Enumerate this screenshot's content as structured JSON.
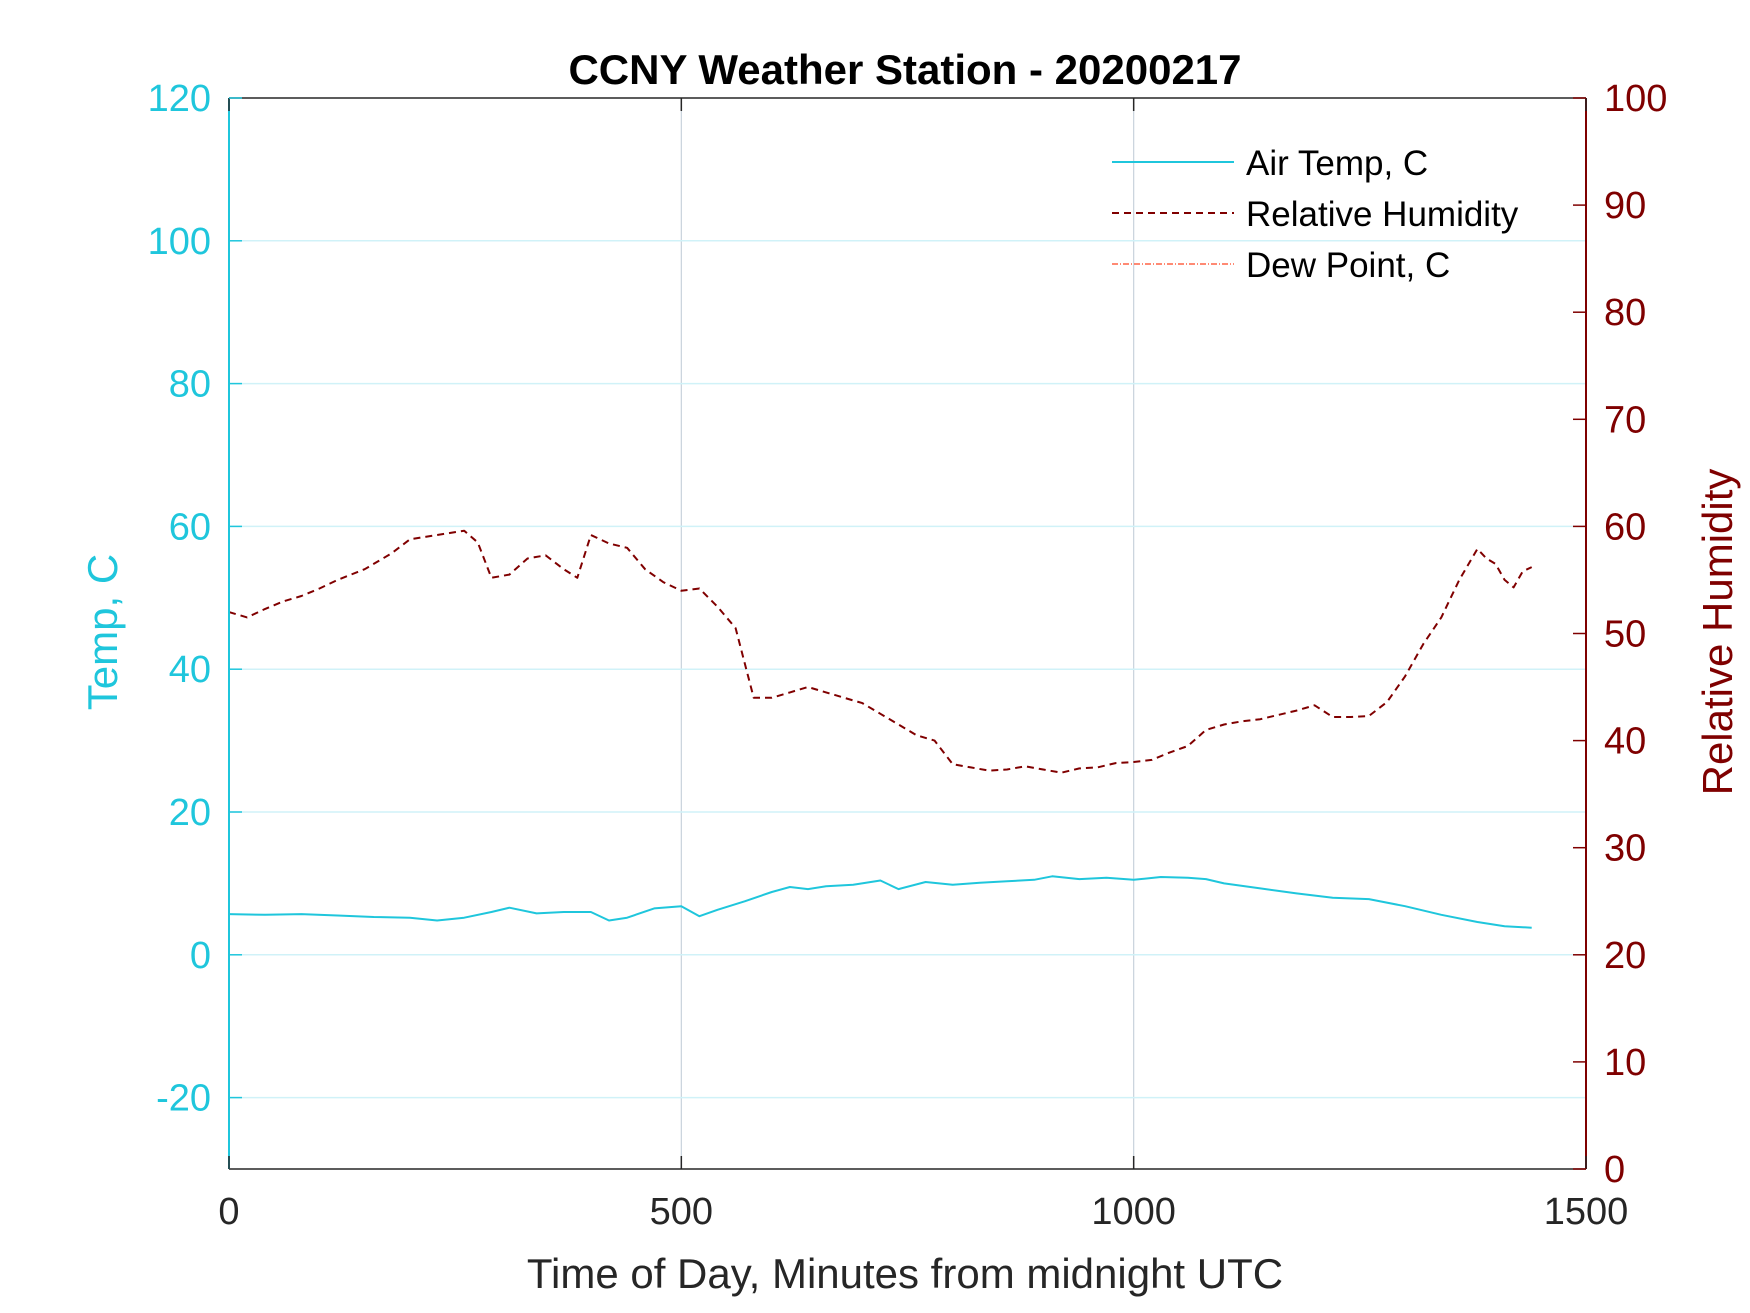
{
  "chart_data": {
    "type": "line",
    "title": "CCNY Weather Station - 20200217",
    "xlabel": "Time of Day, Minutes from midnight UTC",
    "ylabel_left": "Temp, C",
    "ylabel_right": "Relative Humidity",
    "xlim": [
      0,
      1500
    ],
    "ylim_left": [
      -30,
      120
    ],
    "ylim_right": [
      0,
      100
    ],
    "x_ticks": [
      "0",
      "500",
      "1000",
      "1500"
    ],
    "x_tick_values": [
      0,
      500,
      1000,
      1500
    ],
    "y_left_ticks": [
      "-20",
      "0",
      "20",
      "40",
      "60",
      "80",
      "100",
      "120"
    ],
    "y_left_tick_values": [
      -20,
      0,
      20,
      40,
      60,
      80,
      100,
      120
    ],
    "y_right_ticks": [
      "0",
      "10",
      "20",
      "30",
      "40",
      "50",
      "60",
      "70",
      "80",
      "90",
      "100"
    ],
    "y_right_tick_values": [
      0,
      10,
      20,
      30,
      40,
      50,
      60,
      70,
      80,
      90,
      100
    ],
    "grid": true,
    "legend_position": "top-right",
    "colors": {
      "left_axis": "#1fc6dc",
      "right_axis": "#7f0000",
      "air_temp": "#1fc6dc",
      "humidity": "#800000",
      "dew_point": "#ff6347",
      "grid_x": "#c8d2dc",
      "grid_y": "#d0f2f8"
    },
    "series": [
      {
        "name": "Air Temp, C",
        "axis": "left",
        "style": "solid",
        "x": [
          0,
          40,
          80,
          120,
          160,
          200,
          230,
          260,
          290,
          310,
          340,
          370,
          400,
          420,
          440,
          470,
          500,
          520,
          540,
          570,
          600,
          620,
          640,
          660,
          690,
          720,
          740,
          770,
          800,
          830,
          860,
          890,
          910,
          940,
          970,
          1000,
          1030,
          1060,
          1080,
          1100,
          1140,
          1180,
          1220,
          1260,
          1300,
          1340,
          1380,
          1410,
          1440
        ],
        "values": [
          5.7,
          5.6,
          5.7,
          5.5,
          5.3,
          5.2,
          4.8,
          5.2,
          6.0,
          6.6,
          5.8,
          6.0,
          6.0,
          4.8,
          5.2,
          6.5,
          6.8,
          5.4,
          6.3,
          7.5,
          8.8,
          9.5,
          9.2,
          9.6,
          9.8,
          10.4,
          9.2,
          10.2,
          9.8,
          10.1,
          10.3,
          10.5,
          11.0,
          10.6,
          10.8,
          10.5,
          10.9,
          10.8,
          10.6,
          10.0,
          9.3,
          8.6,
          8.0,
          7.8,
          6.8,
          5.6,
          4.6,
          4.0,
          3.8
        ]
      },
      {
        "name": "Relative Humidity",
        "axis": "right",
        "style": "dashed",
        "x": [
          0,
          20,
          40,
          60,
          80,
          100,
          120,
          150,
          180,
          200,
          230,
          260,
          275,
          290,
          310,
          330,
          350,
          370,
          385,
          400,
          420,
          440,
          460,
          480,
          500,
          520,
          540,
          560,
          580,
          600,
          620,
          640,
          660,
          680,
          700,
          720,
          740,
          760,
          780,
          800,
          820,
          840,
          860,
          880,
          900,
          920,
          940,
          960,
          980,
          1000,
          1020,
          1040,
          1060,
          1080,
          1100,
          1120,
          1140,
          1160,
          1180,
          1200,
          1220,
          1240,
          1260,
          1280,
          1300,
          1320,
          1340,
          1360,
          1380,
          1390,
          1400,
          1410,
          1420,
          1430,
          1440
        ],
        "values": [
          52.0,
          51.5,
          52.3,
          53.0,
          53.5,
          54.2,
          55.0,
          56.0,
          57.5,
          58.8,
          59.2,
          59.6,
          58.5,
          55.2,
          55.5,
          57.0,
          57.3,
          56.0,
          55.2,
          59.2,
          58.4,
          58.0,
          56.0,
          54.8,
          54.0,
          54.2,
          52.5,
          50.5,
          44.0,
          44.0,
          44.5,
          45.0,
          44.5,
          44.0,
          43.5,
          42.5,
          41.5,
          40.5,
          40.0,
          37.8,
          37.5,
          37.2,
          37.3,
          37.6,
          37.3,
          37.0,
          37.4,
          37.5,
          37.9,
          38.0,
          38.2,
          38.9,
          39.5,
          41.0,
          41.5,
          41.8,
          42.0,
          42.4,
          42.8,
          43.3,
          42.2,
          42.2,
          42.3,
          43.6,
          46.0,
          49.0,
          51.5,
          55.0,
          57.9,
          57.0,
          56.5,
          55.0,
          54.3,
          55.8,
          56.2
        ]
      },
      {
        "name": "Dew Point, C",
        "axis": "left",
        "style": "dashdot",
        "x": [],
        "values": []
      }
    ]
  }
}
